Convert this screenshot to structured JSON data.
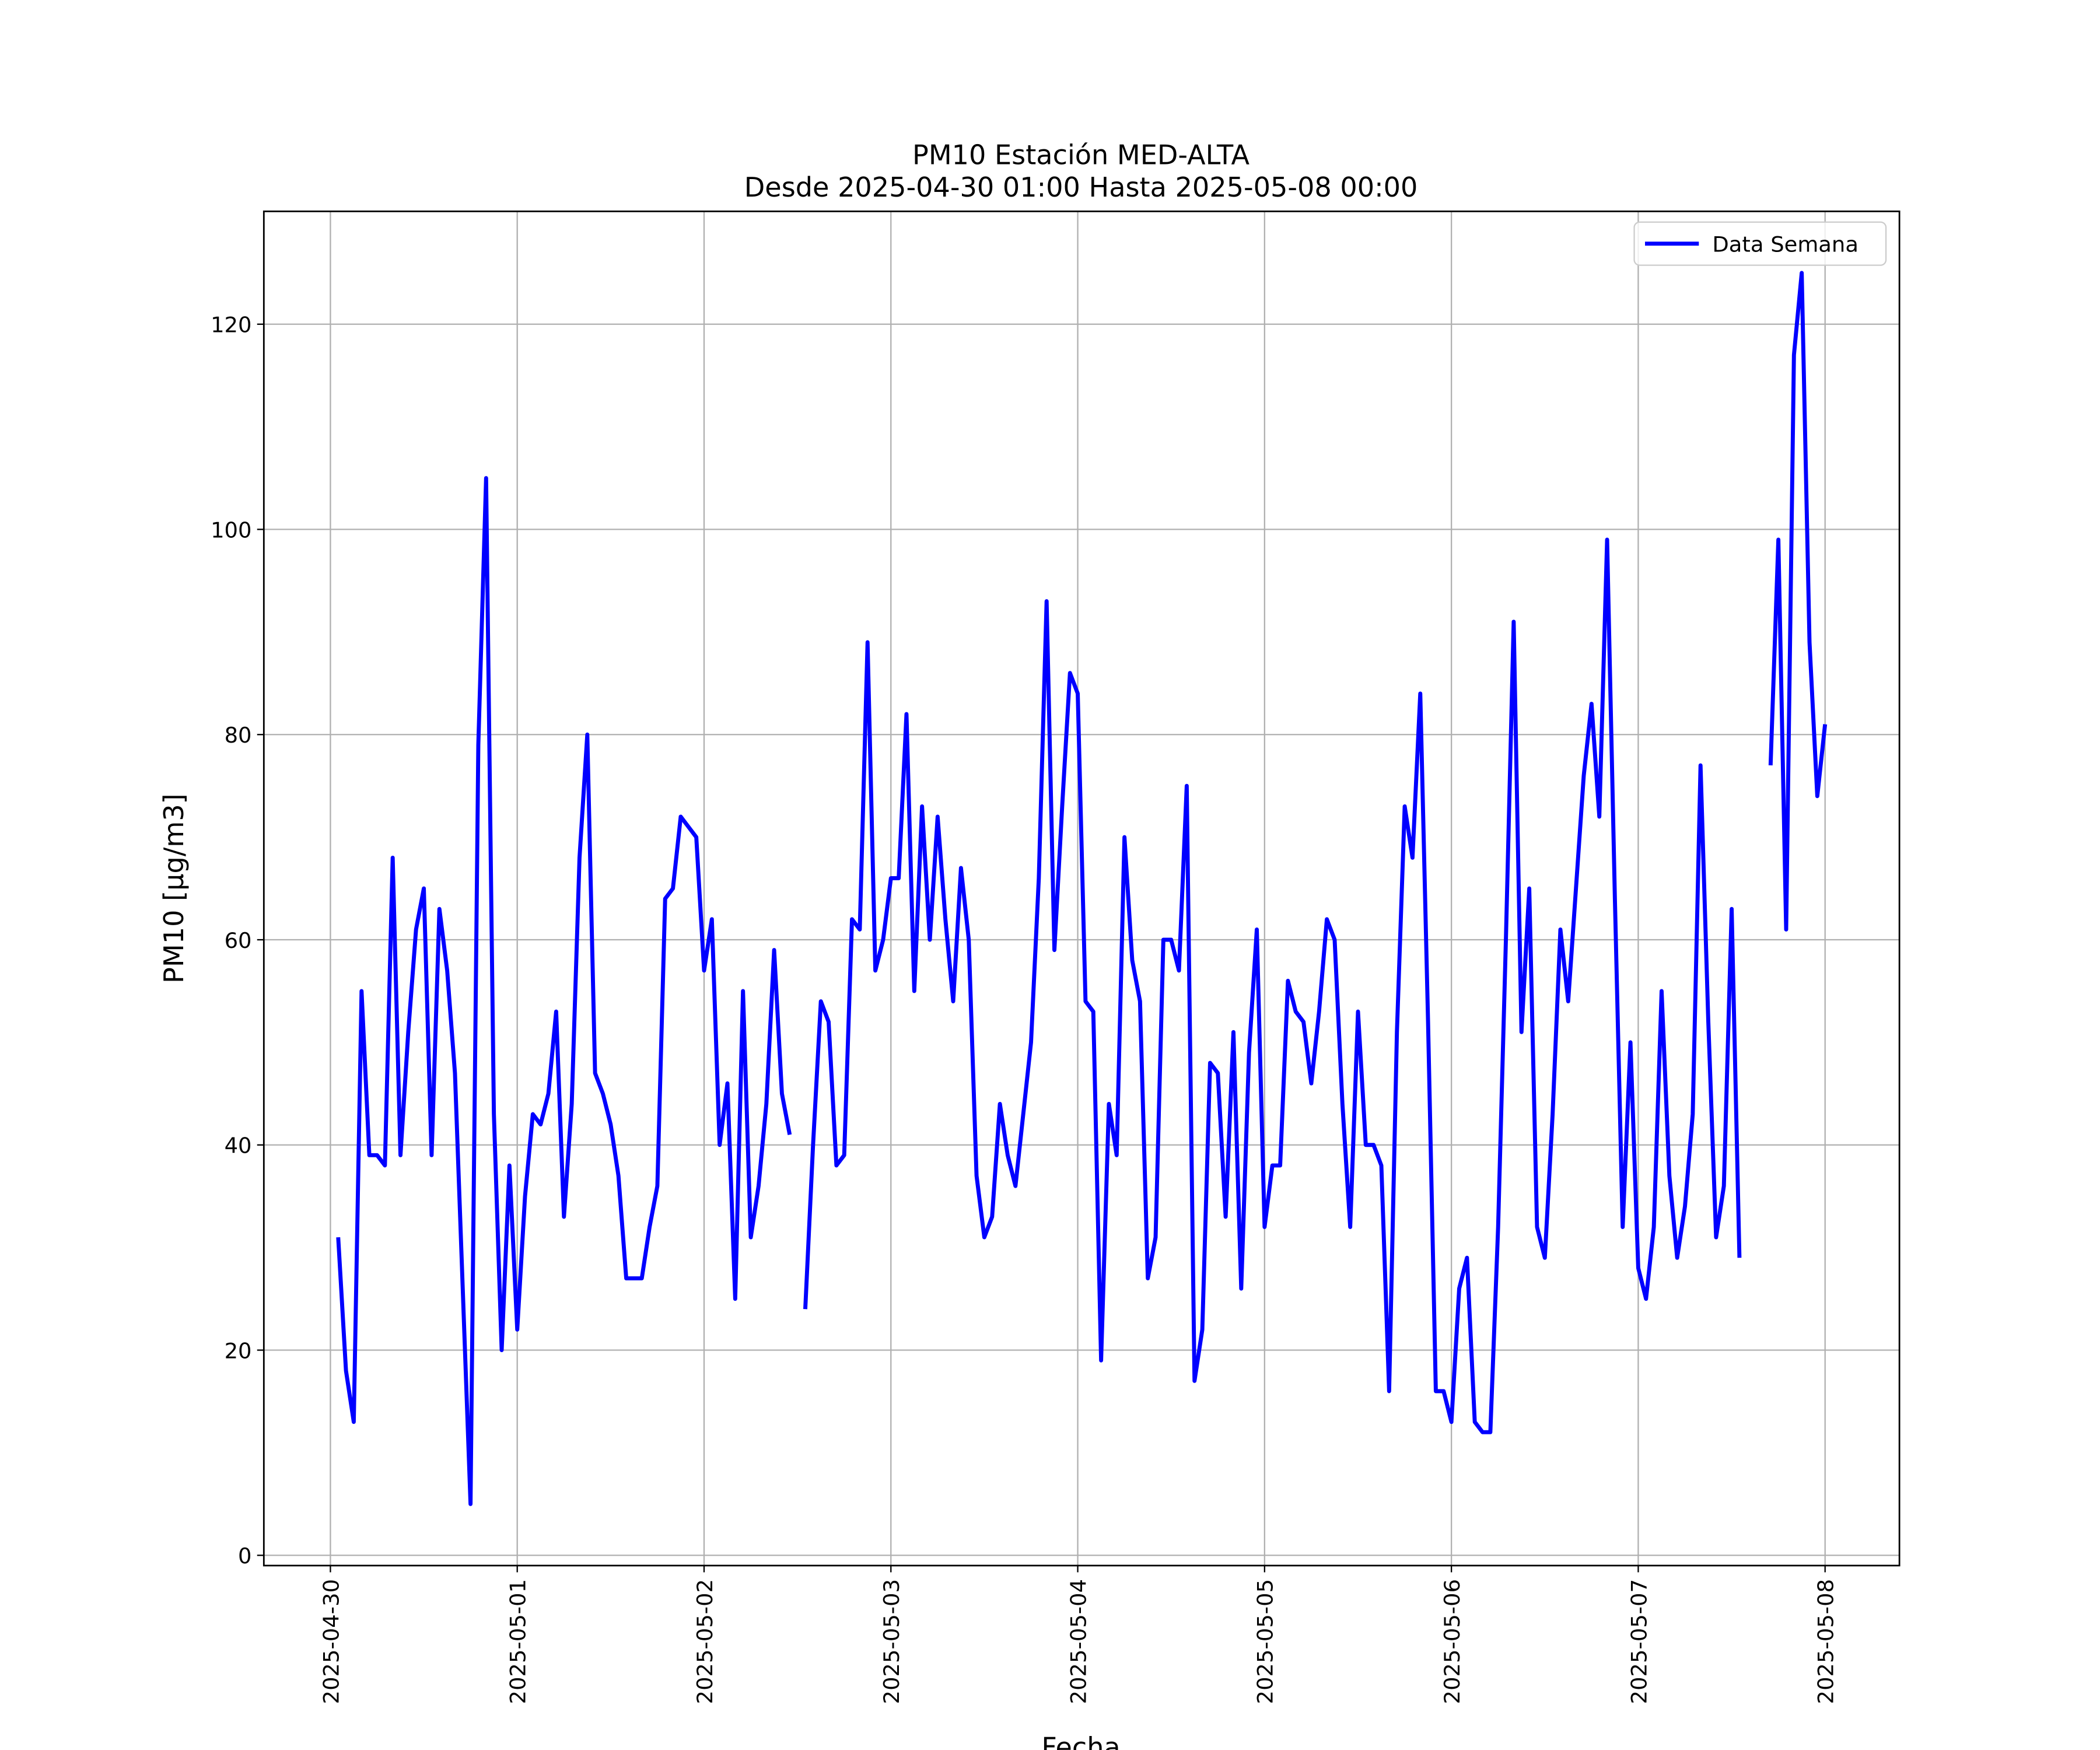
{
  "chart_data": {
    "type": "line",
    "title": "PM10 Estación MED-ALTA",
    "subtitle": "Desde 2025-04-30 01:00 Hasta 2025-05-08 00:00",
    "x_label": "Fecha",
    "y_label": "PM10 [μg/m3]",
    "x": [
      "2025-04-30 01:00",
      "2025-04-30 02:00",
      "2025-04-30 03:00",
      "2025-04-30 04:00",
      "2025-04-30 05:00",
      "2025-04-30 06:00",
      "2025-04-30 07:00",
      "2025-04-30 08:00",
      "2025-04-30 09:00",
      "2025-04-30 10:00",
      "2025-04-30 11:00",
      "2025-04-30 12:00",
      "2025-04-30 13:00",
      "2025-04-30 14:00",
      "2025-04-30 15:00",
      "2025-04-30 16:00",
      "2025-04-30 17:00",
      "2025-04-30 18:00",
      "2025-04-30 19:00",
      "2025-04-30 20:00",
      "2025-04-30 21:00",
      "2025-04-30 22:00",
      "2025-04-30 23:00",
      "2025-05-01 00:00",
      "2025-05-01 01:00",
      "2025-05-01 02:00",
      "2025-05-01 03:00",
      "2025-05-01 04:00",
      "2025-05-01 05:00",
      "2025-05-01 06:00",
      "2025-05-01 07:00",
      "2025-05-01 08:00",
      "2025-05-01 09:00",
      "2025-05-01 10:00",
      "2025-05-01 11:00",
      "2025-05-01 12:00",
      "2025-05-01 13:00",
      "2025-05-01 14:00",
      "2025-05-01 15:00",
      "2025-05-01 16:00",
      "2025-05-01 17:00",
      "2025-05-01 18:00",
      "2025-05-01 19:00",
      "2025-05-01 20:00",
      "2025-05-01 21:00",
      "2025-05-01 22:00",
      "2025-05-01 23:00",
      "2025-05-02 00:00",
      "2025-05-02 01:00",
      "2025-05-02 02:00",
      "2025-05-02 03:00",
      "2025-05-02 04:00",
      "2025-05-02 05:00",
      "2025-05-02 06:00",
      "2025-05-02 07:00",
      "2025-05-02 08:00",
      "2025-05-02 09:00",
      "2025-05-02 10:00",
      "2025-05-02 11:00",
      "2025-05-02 12:00",
      "2025-05-02 13:00",
      "2025-05-02 14:00",
      "2025-05-02 15:00",
      "2025-05-02 16:00",
      "2025-05-02 17:00",
      "2025-05-02 18:00",
      "2025-05-02 19:00",
      "2025-05-02 20:00",
      "2025-05-02 21:00",
      "2025-05-02 22:00",
      "2025-05-02 23:00",
      "2025-05-03 00:00",
      "2025-05-03 01:00",
      "2025-05-03 02:00",
      "2025-05-03 03:00",
      "2025-05-03 04:00",
      "2025-05-03 05:00",
      "2025-05-03 06:00",
      "2025-05-03 07:00",
      "2025-05-03 08:00",
      "2025-05-03 09:00",
      "2025-05-03 10:00",
      "2025-05-03 11:00",
      "2025-05-03 12:00",
      "2025-05-03 13:00",
      "2025-05-03 14:00",
      "2025-05-03 15:00",
      "2025-05-03 16:00",
      "2025-05-03 17:00",
      "2025-05-03 18:00",
      "2025-05-03 19:00",
      "2025-05-03 20:00",
      "2025-05-03 21:00",
      "2025-05-03 22:00",
      "2025-05-03 23:00",
      "2025-05-04 00:00",
      "2025-05-04 01:00",
      "2025-05-04 02:00",
      "2025-05-04 03:00",
      "2025-05-04 04:00",
      "2025-05-04 05:00",
      "2025-05-04 06:00",
      "2025-05-04 07:00",
      "2025-05-04 08:00",
      "2025-05-04 09:00",
      "2025-05-04 10:00",
      "2025-05-04 11:00",
      "2025-05-04 12:00",
      "2025-05-04 13:00",
      "2025-05-04 14:00",
      "2025-05-04 15:00",
      "2025-05-04 16:00",
      "2025-05-04 17:00",
      "2025-05-04 18:00",
      "2025-05-04 19:00",
      "2025-05-04 20:00",
      "2025-05-04 21:00",
      "2025-05-04 22:00",
      "2025-05-04 23:00",
      "2025-05-05 00:00",
      "2025-05-05 01:00",
      "2025-05-05 02:00",
      "2025-05-05 03:00",
      "2025-05-05 04:00",
      "2025-05-05 05:00",
      "2025-05-05 06:00",
      "2025-05-05 07:00",
      "2025-05-05 08:00",
      "2025-05-05 09:00",
      "2025-05-05 10:00",
      "2025-05-05 11:00",
      "2025-05-05 12:00",
      "2025-05-05 13:00",
      "2025-05-05 14:00",
      "2025-05-05 15:00",
      "2025-05-05 16:00",
      "2025-05-05 17:00",
      "2025-05-05 18:00",
      "2025-05-05 19:00",
      "2025-05-05 20:00",
      "2025-05-05 21:00",
      "2025-05-05 22:00",
      "2025-05-05 23:00",
      "2025-05-06 00:00",
      "2025-05-06 01:00",
      "2025-05-06 02:00",
      "2025-05-06 03:00",
      "2025-05-06 04:00",
      "2025-05-06 05:00",
      "2025-05-06 06:00",
      "2025-05-06 07:00",
      "2025-05-06 08:00",
      "2025-05-06 09:00",
      "2025-05-06 10:00",
      "2025-05-06 11:00",
      "2025-05-06 12:00",
      "2025-05-06 13:00",
      "2025-05-06 14:00",
      "2025-05-06 15:00",
      "2025-05-06 16:00",
      "2025-05-06 17:00",
      "2025-05-06 18:00",
      "2025-05-06 19:00",
      "2025-05-06 20:00",
      "2025-05-06 21:00",
      "2025-05-06 22:00",
      "2025-05-06 23:00",
      "2025-05-07 00:00",
      "2025-05-07 01:00",
      "2025-05-07 02:00",
      "2025-05-07 03:00",
      "2025-05-07 04:00",
      "2025-05-07 05:00",
      "2025-05-07 06:00",
      "2025-05-07 07:00",
      "2025-05-07 08:00",
      "2025-05-07 09:00",
      "2025-05-07 10:00",
      "2025-05-07 11:00",
      "2025-05-07 12:00",
      "2025-05-07 13:00",
      "2025-05-07 14:00",
      "2025-05-07 15:00",
      "2025-05-07 16:00",
      "2025-05-07 17:00",
      "2025-05-07 18:00",
      "2025-05-07 19:00",
      "2025-05-07 20:00",
      "2025-05-07 21:00",
      "2025-05-07 22:00",
      "2025-05-07 23:00",
      "2025-05-08 00:00"
    ],
    "series": [
      {
        "name": "Data Semana",
        "color": "#0000ff",
        "values": [
          31,
          18,
          13,
          55,
          39,
          39,
          38,
          68,
          39,
          51,
          61,
          65,
          39,
          63,
          57,
          47,
          26,
          5,
          79,
          105,
          43,
          20,
          38,
          22,
          35,
          43,
          42,
          45,
          53,
          33,
          44,
          68,
          80,
          47,
          45,
          42,
          37,
          27,
          27,
          27,
          32,
          36,
          64,
          65,
          72,
          71,
          70,
          57,
          62,
          40,
          46,
          25,
          55,
          31,
          36,
          44,
          59,
          45,
          41,
          null,
          24,
          40,
          54,
          52,
          38,
          39,
          62,
          61,
          89,
          57,
          60,
          66,
          66,
          82,
          55,
          73,
          60,
          72,
          62,
          54,
          67,
          60,
          37,
          31,
          33,
          44,
          39,
          36,
          43,
          50,
          66,
          93,
          59,
          73,
          86,
          84,
          54,
          53,
          19,
          44,
          39,
          70,
          58,
          54,
          27,
          31,
          60,
          60,
          57,
          75,
          17,
          22,
          48,
          47,
          33,
          51,
          26,
          49,
          61,
          32,
          38,
          38,
          56,
          53,
          52,
          46,
          53,
          62,
          60,
          44,
          32,
          53,
          40,
          40,
          38,
          16,
          51,
          73,
          68,
          84,
          52,
          16,
          16,
          13,
          26,
          29,
          13,
          12,
          12,
          32,
          60,
          91,
          51,
          65,
          32,
          29,
          43,
          61,
          54,
          65,
          76,
          83,
          72,
          99,
          64,
          32,
          50,
          28,
          25,
          32,
          55,
          37,
          29,
          34,
          43,
          77,
          52,
          31,
          36,
          63,
          29,
          null,
          null,
          null,
          77,
          99,
          61,
          117,
          125,
          89,
          74,
          81
        ]
      }
    ],
    "xlim": [
      "2025-04-29 15:27",
      "2025-05-08 09:33"
    ],
    "xticks": [
      "2025-04-30",
      "2025-05-01",
      "2025-05-02",
      "2025-05-03",
      "2025-05-04",
      "2025-05-05",
      "2025-05-06",
      "2025-05-07",
      "2025-05-08"
    ],
    "ylim": [
      -1,
      131
    ],
    "yticks": [
      0,
      20,
      40,
      60,
      80,
      100,
      120
    ],
    "grid": true,
    "legend": "upper right"
  }
}
